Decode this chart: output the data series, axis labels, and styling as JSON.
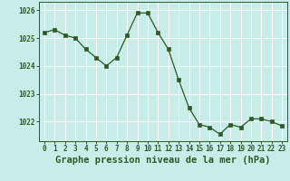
{
  "x": [
    0,
    1,
    2,
    3,
    4,
    5,
    6,
    7,
    8,
    9,
    10,
    11,
    12,
    13,
    14,
    15,
    16,
    17,
    18,
    19,
    20,
    21,
    22,
    23
  ],
  "y": [
    1025.2,
    1025.3,
    1025.1,
    1025.0,
    1024.6,
    1024.3,
    1024.0,
    1024.3,
    1025.1,
    1025.9,
    1025.9,
    1025.2,
    1024.6,
    1023.5,
    1022.5,
    1021.9,
    1021.8,
    1021.55,
    1021.9,
    1021.8,
    1022.1,
    1022.1,
    1022.0,
    1021.85
  ],
  "line_color": "#2d5a27",
  "marker_color": "#2d5a27",
  "bg_color": "#c8ece8",
  "grid_color": "#ffffff",
  "xlabel": "Graphe pression niveau de la mer (hPa)",
  "xlabel_color": "#2d5a27",
  "tick_color": "#2d5a27",
  "ylim": [
    1021.3,
    1026.3
  ],
  "yticks": [
    1022,
    1023,
    1024,
    1025,
    1026
  ],
  "xticks": [
    0,
    1,
    2,
    3,
    4,
    5,
    6,
    7,
    8,
    9,
    10,
    11,
    12,
    13,
    14,
    15,
    16,
    17,
    18,
    19,
    20,
    21,
    22,
    23
  ],
  "xlabel_fontsize": 7.5,
  "tick_fontsize": 5.5
}
